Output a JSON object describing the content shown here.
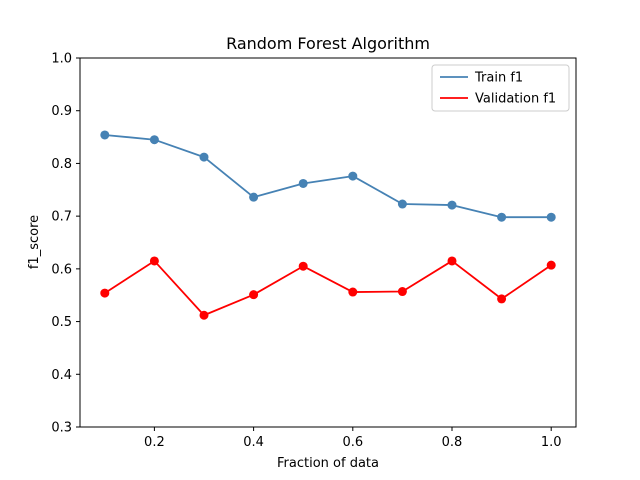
{
  "chart_data": {
    "type": "line",
    "title": "Random Forest Algorithm",
    "xlabel": "Fraction of data",
    "ylabel": "f1_score",
    "xlim": [
      0.05,
      1.05
    ],
    "ylim": [
      0.3,
      1.0
    ],
    "x_ticks": [
      0.2,
      0.4,
      0.6,
      0.8,
      1.0
    ],
    "x_tick_labels": [
      "0.2",
      "0.4",
      "0.6",
      "0.8",
      "1.0"
    ],
    "y_ticks": [
      0.3,
      0.4,
      0.5,
      0.6,
      0.7,
      0.8,
      0.9,
      1.0
    ],
    "y_tick_labels": [
      "0.3",
      "0.4",
      "0.5",
      "0.6",
      "0.7",
      "0.8",
      "0.9",
      "1.0"
    ],
    "grid": false,
    "legend_position": "top-right",
    "x": [
      0.1,
      0.2,
      0.3,
      0.4,
      0.5,
      0.6,
      0.7,
      0.8,
      0.9,
      1.0
    ],
    "series": [
      {
        "name": "Train f1",
        "color": "#4682b4",
        "values": [
          0.854,
          0.845,
          0.812,
          0.736,
          0.762,
          0.776,
          0.723,
          0.721,
          0.698,
          0.698
        ]
      },
      {
        "name": "Validation f1",
        "color": "#ff0000",
        "values": [
          0.554,
          0.615,
          0.512,
          0.551,
          0.605,
          0.556,
          0.557,
          0.615,
          0.543,
          0.607
        ]
      }
    ]
  }
}
